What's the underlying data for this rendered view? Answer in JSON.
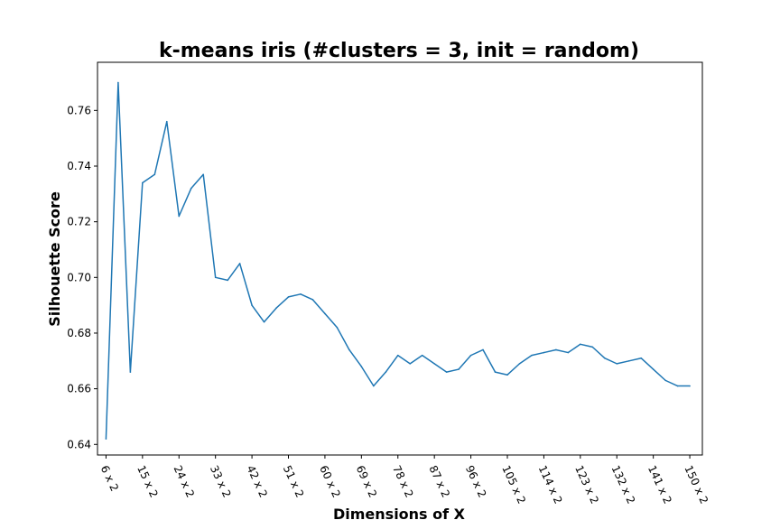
{
  "chart_data": {
    "type": "line",
    "title": "k-means iris (#clusters = 3, init = random)",
    "xlabel": "Dimensions of X",
    "ylabel": "Silhouette Score",
    "x_tick_labels": [
      "6 x 2",
      "15 x 2",
      "24 x 2",
      "33 x 2",
      "42 x 2",
      "51 x 2",
      "60 x 2",
      "69 x 2",
      "78 x 2",
      "87 x 2",
      "96 x 2",
      "105 x 2",
      "114 x 2",
      "123 x 2",
      "132 x 2",
      "141 x 2",
      "150 x 2"
    ],
    "y_ticks": [
      0.64,
      0.66,
      0.68,
      0.7,
      0.72,
      0.74,
      0.76
    ],
    "y_tick_labels": [
      "0.64",
      "0.66",
      "0.68",
      "0.70",
      "0.72",
      "0.74",
      "0.76"
    ],
    "xlim": [
      3.9,
      153.1
    ],
    "ylim": [
      0.6362,
      0.7773
    ],
    "grid": false,
    "series": [
      {
        "color": "#1f77b4",
        "x": [
          6,
          9,
          12,
          15,
          18,
          21,
          24,
          27,
          30,
          33,
          36,
          39,
          42,
          45,
          48,
          51,
          54,
          57,
          60,
          63,
          66,
          69,
          72,
          75,
          78,
          81,
          84,
          87,
          90,
          93,
          96,
          99,
          102,
          105,
          108,
          111,
          114,
          117,
          120,
          123,
          126,
          129,
          132,
          135,
          138,
          141,
          144,
          147,
          150
        ],
        "values": [
          0.642,
          0.77,
          0.666,
          0.734,
          0.737,
          0.756,
          0.722,
          0.732,
          0.737,
          0.7,
          0.699,
          0.705,
          0.69,
          0.684,
          0.689,
          0.693,
          0.694,
          0.692,
          0.687,
          0.682,
          0.674,
          0.668,
          0.661,
          0.666,
          0.672,
          0.669,
          0.672,
          0.669,
          0.666,
          0.667,
          0.672,
          0.674,
          0.666,
          0.665,
          0.669,
          0.672,
          0.673,
          0.674,
          0.673,
          0.676,
          0.675,
          0.671,
          0.669,
          0.67,
          0.671,
          0.667,
          0.663,
          0.661,
          0.661
        ]
      }
    ]
  }
}
